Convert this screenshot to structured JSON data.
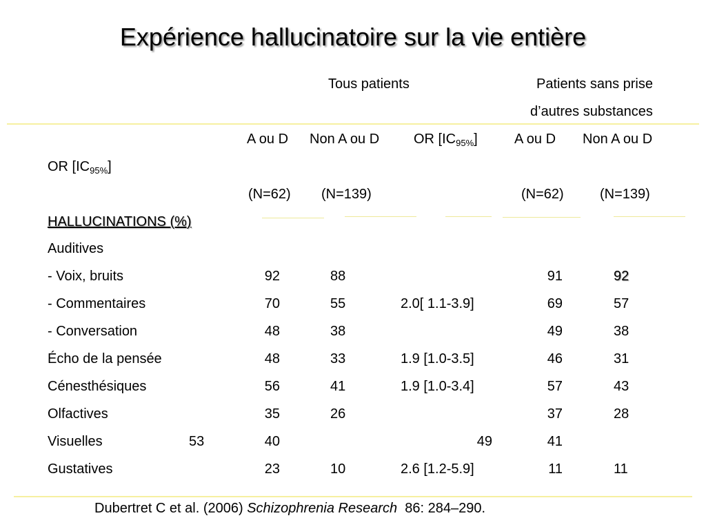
{
  "title": "Expérience hallucinatoire sur la vie entière",
  "groups": {
    "all_patients": "Tous patients",
    "no_substance_line1": "Patients sans prise",
    "no_substance_line2": "d’autres substances"
  },
  "columns": {
    "a_ou_d_1": "A ou D",
    "non_a_ou_d_1": "Non A ou D",
    "or_1_prefix": "OR [IC",
    "or_1_sub": "95%",
    "or_1_suffix": "]",
    "a_ou_d_2": "A ou D",
    "non_a_ou_d_2": "Non A ou D",
    "or_2_prefix": "OR [IC",
    "or_2_sub": "95%",
    "or_2_suffix": "]",
    "n_a_ou_d_1": "(N=62)",
    "n_non_a_ou_d_1": "(N=139)",
    "n_a_ou_d_2": "(N=62)",
    "n_non_a_ou_d_2": "(N=139)"
  },
  "section_heading": "HALLUCINATIONS (%)",
  "auditives_label": "Auditives",
  "rows": {
    "voix": {
      "label": " - Voix, bruits",
      "a1": "92",
      "n1": "88",
      "or1": "",
      "a2": "91",
      "n2": "92"
    },
    "commentaires": {
      "label": " - Commentaires",
      "a1": "70",
      "n1": "55",
      "or1": "2.0[ 1.1-3.9]",
      "a2": "69",
      "n2": "57"
    },
    "conversation": {
      "label": " - Conversation",
      "a1": "48",
      "n1": "38",
      "or1": "",
      "a2": "49",
      "n2": "38"
    },
    "echo": {
      "label": "Écho de la pensée",
      "a1": "48",
      "n1": "33",
      "or1": "1.9 [1.0-3.5]",
      "a2": "46",
      "n2": "31"
    },
    "cenesthesiques": {
      "label": "Cénesthésiques",
      "a1": "56",
      "n1": "41",
      "or1": "1.9 [1.0-3.4]",
      "a2": "57",
      "n2": "43"
    },
    "olfactives": {
      "label": " Olfactives",
      "a1": "35",
      "n1": "26",
      "or1": "",
      "a2": "37",
      "n2": "28"
    },
    "visuelles": {
      "label": "Visuelles",
      "extra": "53",
      "a1": "40",
      "or_col": "49",
      "a2": "41"
    },
    "gustatives": {
      "label": "Gustatives",
      "a1": "23",
      "n1": "10",
      "or1": "2.6 [1.2-5.9]",
      "a2": "11",
      "n2": "11"
    }
  },
  "citation": {
    "authors": "Dubertret C et al. (2006) ",
    "journal": "Schizophrenia Research",
    "volume": "  86: 284–290."
  },
  "colors": {
    "rule": "#f6f0a0",
    "text": "#000000",
    "background": "#ffffff"
  }
}
